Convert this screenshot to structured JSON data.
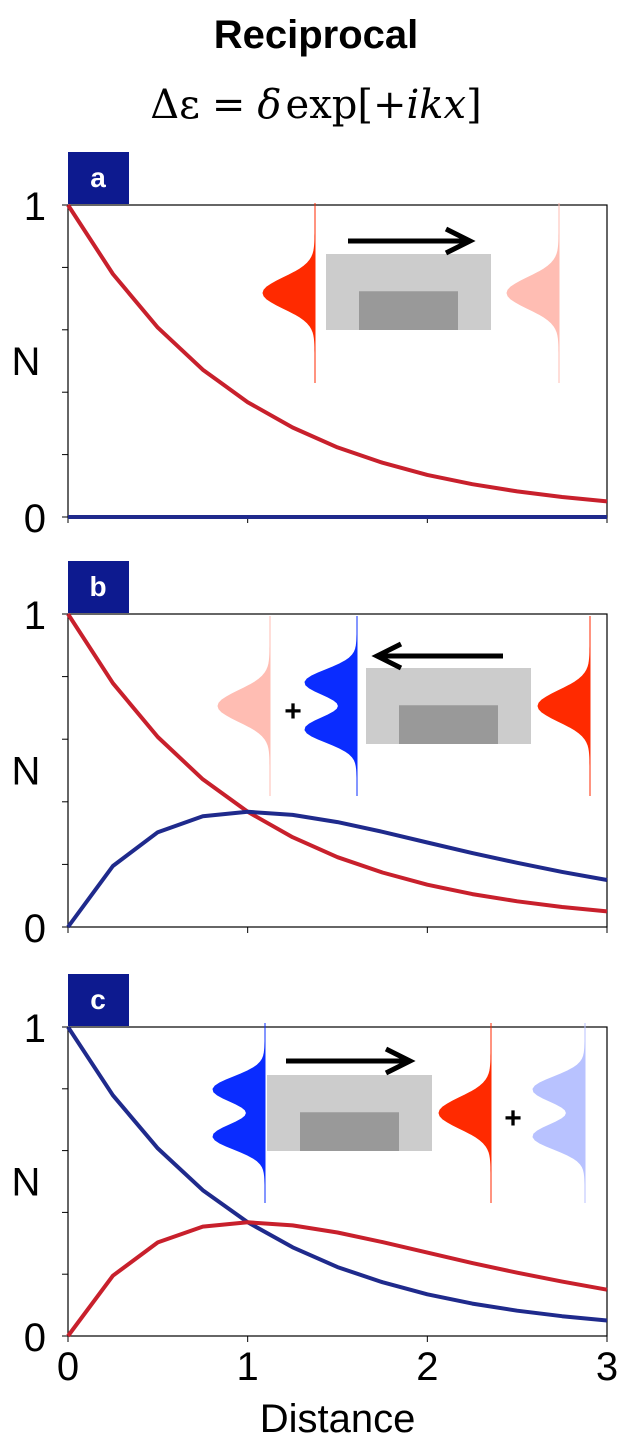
{
  "title": "Reciprocal",
  "equation": {
    "lhs": "Δε",
    "eq": "=",
    "delta": "δ",
    "fn": "exp[+",
    "arg": "ikx",
    "close": "]"
  },
  "colors": {
    "red": "#c8202c",
    "blue": "#1f2a8c",
    "panel_label_bg": "#0d1a8f",
    "pulse_red": "#ff2a00",
    "pulse_red_faded": "#ffbdb3",
    "pulse_blue": "#0a2cff",
    "pulse_blue_faded": "#b8c2ff",
    "box_light": "#cccccc",
    "box_dark": "#999999"
  },
  "chart_data": [
    {
      "type": "line",
      "panel": "a",
      "xlim": [
        0,
        3
      ],
      "ylim": [
        0,
        1
      ],
      "ylabel": "N",
      "yticks": [
        "0",
        "1"
      ],
      "grid": false,
      "x": [
        0,
        0.25,
        0.5,
        0.75,
        1.0,
        1.25,
        1.5,
        1.75,
        2.0,
        2.25,
        2.5,
        2.75,
        3.0
      ],
      "series": [
        {
          "color": "red",
          "values": [
            1.0,
            0.779,
            0.607,
            0.472,
            0.368,
            0.287,
            0.223,
            0.174,
            0.135,
            0.105,
            0.082,
            0.064,
            0.05
          ]
        },
        {
          "color": "blue",
          "values": [
            0,
            0,
            0,
            0,
            0,
            0,
            0,
            0,
            0,
            0,
            0,
            0,
            0
          ]
        }
      ],
      "inset": {
        "arrow": "right",
        "left": [
          "red"
        ],
        "right": [
          "red_faded"
        ]
      }
    },
    {
      "type": "line",
      "panel": "b",
      "xlim": [
        0,
        3
      ],
      "ylim": [
        0,
        1
      ],
      "ylabel": "N",
      "yticks": [
        "0",
        "1"
      ],
      "grid": false,
      "x": [
        0,
        0.25,
        0.5,
        0.75,
        1.0,
        1.25,
        1.5,
        1.75,
        2.0,
        2.25,
        2.5,
        2.75,
        3.0
      ],
      "series": [
        {
          "color": "red",
          "values": [
            1.0,
            0.779,
            0.607,
            0.472,
            0.368,
            0.287,
            0.223,
            0.174,
            0.135,
            0.105,
            0.082,
            0.064,
            0.05
          ]
        },
        {
          "color": "blue",
          "values": [
            0,
            0.195,
            0.303,
            0.354,
            0.368,
            0.358,
            0.335,
            0.304,
            0.27,
            0.236,
            0.205,
            0.176,
            0.15
          ]
        }
      ],
      "inset": {
        "arrow": "left",
        "left": [
          "red_faded",
          "blue"
        ],
        "right": [
          "red"
        ],
        "plus": "+"
      }
    },
    {
      "type": "line",
      "panel": "c",
      "xlim": [
        0,
        3
      ],
      "ylim": [
        0,
        1
      ],
      "ylabel": "N",
      "yticks": [
        "0",
        "1"
      ],
      "xticks": [
        "0",
        "1",
        "2",
        "3"
      ],
      "xlabel": "Distance",
      "grid": false,
      "x": [
        0,
        0.25,
        0.5,
        0.75,
        1.0,
        1.25,
        1.5,
        1.75,
        2.0,
        2.25,
        2.5,
        2.75,
        3.0
      ],
      "series": [
        {
          "color": "blue",
          "values": [
            1.0,
            0.779,
            0.607,
            0.472,
            0.368,
            0.287,
            0.223,
            0.174,
            0.135,
            0.105,
            0.082,
            0.064,
            0.05
          ]
        },
        {
          "color": "red",
          "values": [
            0,
            0.195,
            0.303,
            0.354,
            0.368,
            0.358,
            0.335,
            0.304,
            0.27,
            0.236,
            0.205,
            0.176,
            0.15
          ]
        }
      ],
      "inset": {
        "arrow": "right",
        "left": [
          "blue"
        ],
        "right": [
          "red",
          "blue_faded"
        ],
        "plus": "+"
      }
    }
  ]
}
